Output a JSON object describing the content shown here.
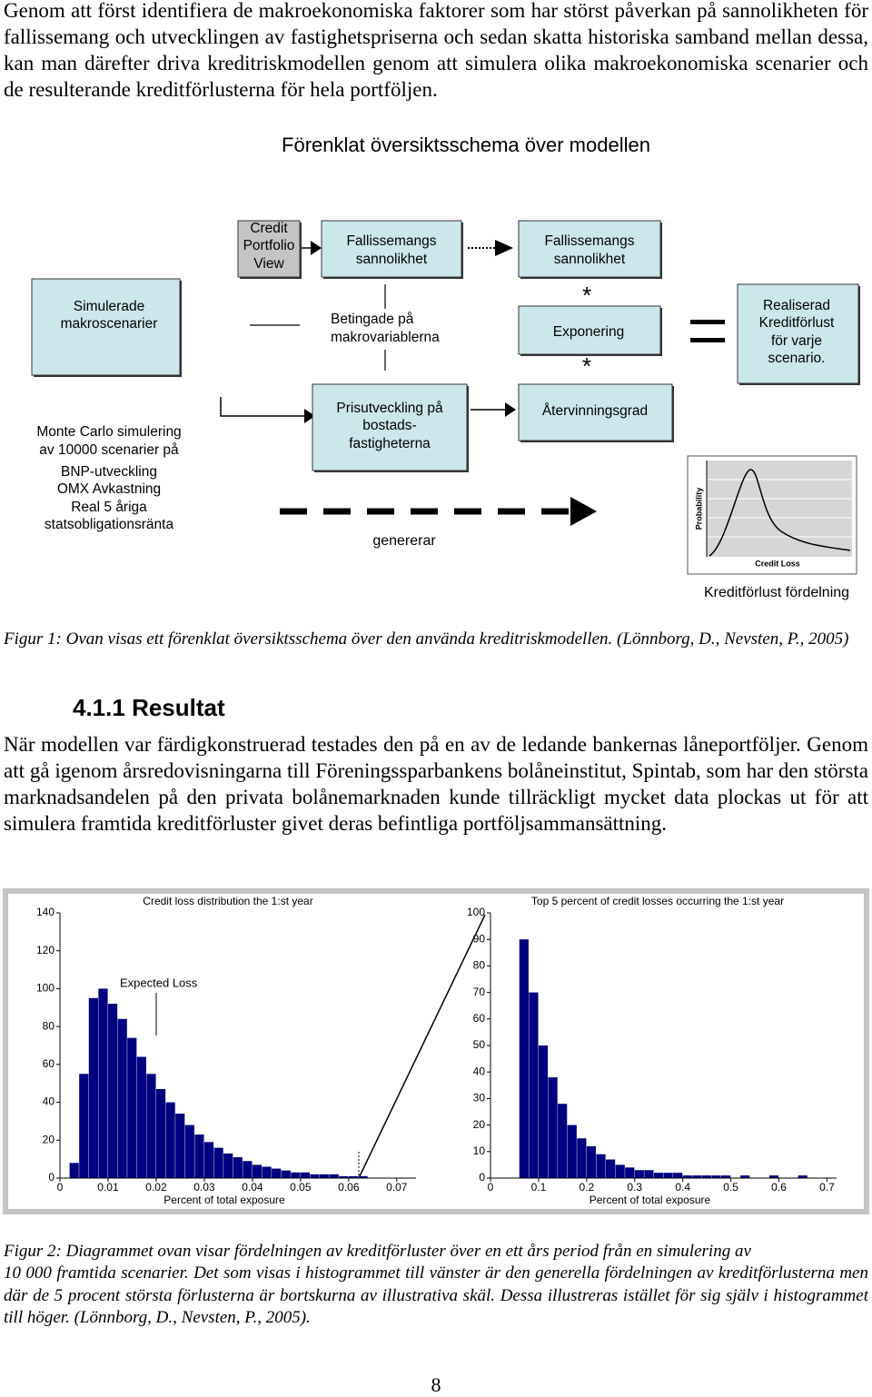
{
  "paragraphs": [
    "Genom att först identifiera de makroekonomiska faktorer som har störst påverkan på sannolikheten för fallissemang och utvecklingen av fastighetspriserna och sedan skatta historiska samband mellan dessa, kan man därefter driva kreditriskmodellen genom att simulera olika makroekonomiska scenarier och de resulterande kreditförlusterna för hela portföljen.",
    "När modellen var färdigkonstruerad testades den på en av de ledande bankernas låneportföljer. Genom att gå igenom årsredovisningarna till Föreningssparbankens bolåneinstitut, Spintab, som har den största marknadsandelen på den privata bolånemarknaden kunde tillräckligt mycket data plockas ut för att simulera framtida kreditförluster givet deras befintliga portföljsammansättning."
  ],
  "diagram": {
    "title": "Förenklat översiktsschema över modellen",
    "nodes": [
      {
        "lines": [
          "Credit",
          "Portfolio",
          "View"
        ]
      },
      {
        "lines": [
          "Fallissemangs",
          "sannolikhet"
        ]
      },
      {
        "lines": [
          "Fallissemangs",
          "sannolikhet"
        ]
      },
      {
        "lines": [
          "Simulerade",
          "makroscenarier"
        ]
      },
      {
        "lines": [
          "Betingade på",
          "makrovariablerna"
        ]
      },
      {
        "lines": [
          "Exponering"
        ]
      },
      {
        "lines": [
          "Realiserad",
          "Kreditförlust",
          "för varje",
          "scenario."
        ]
      },
      {
        "lines": [
          "Monte Carlo simulering",
          "av 10000 scenarier på",
          "BNP-utveckling",
          "OMX Avkastning",
          "Real 5 åriga",
          "statsobligationsränta"
        ]
      },
      {
        "lines": [
          "Prisutveckling på",
          "bostads-",
          "fastigheterna"
        ]
      },
      {
        "lines": [
          "Återvinningsgrad"
        ]
      }
    ],
    "operators": [
      "*",
      "*"
    ],
    "edge_label": "genererar",
    "mini_chart": {
      "ylabel": "Probability",
      "xlabel": "Credit Loss",
      "caption": "Kreditförlust fördelning"
    }
  },
  "figure1_caption": "Figur 1: Ovan visas ett förenklat översiktsschema över den använda kreditriskmodellen. (Lönnborg, D., Nevsten, P., 2005)",
  "section": {
    "number": "4.1.1",
    "title": "Resultat"
  },
  "charts": [
    {
      "type": "histogram",
      "title": "Credit loss distribution the 1:st year",
      "xlabel": "Percent of total exposure",
      "annotation": "Expected Loss",
      "color": "#000080",
      "bins": [
        0,
        0.002,
        0.004,
        0.006,
        0.008,
        0.01,
        0.012,
        0.014,
        0.016,
        0.018,
        0.02,
        0.022,
        0.024,
        0.026,
        0.028,
        0.03,
        0.032,
        0.034,
        0.036,
        0.038,
        0.04,
        0.042,
        0.044,
        0.046,
        0.048,
        0.05,
        0.052,
        0.054,
        0.056,
        0.058,
        0.06,
        0.062,
        0.064
      ],
      "counts": [
        0,
        8,
        55,
        95,
        100,
        92,
        84,
        74,
        64,
        55,
        47,
        40,
        34,
        28,
        23,
        19,
        16,
        13,
        11,
        9,
        7,
        6,
        5,
        4,
        3,
        3,
        2,
        2,
        2,
        1,
        1,
        1
      ],
      "xlim": [
        0,
        0.074
      ],
      "ylim": [
        0,
        140
      ],
      "xticks": [
        0,
        0.01,
        0.02,
        0.03,
        0.04,
        0.05,
        0.06,
        0.07
      ],
      "yticks": [
        0,
        20,
        40,
        60,
        80,
        100,
        120,
        140
      ]
    },
    {
      "type": "histogram",
      "title": "Top 5 percent of credit losses occurring the 1:st year",
      "xlabel": "Percent of total exposure",
      "color": "#000080",
      "bins": [
        0.06,
        0.08,
        0.1,
        0.12,
        0.14,
        0.16,
        0.18,
        0.2,
        0.22,
        0.24,
        0.26,
        0.28,
        0.3,
        0.32,
        0.34,
        0.36,
        0.38,
        0.4,
        0.42,
        0.44,
        0.46,
        0.48,
        0.5,
        0.52,
        0.54,
        0.56,
        0.58,
        0.6,
        0.62,
        0.64,
        0.66
      ],
      "counts": [
        90,
        70,
        50,
        38,
        28,
        20,
        15,
        12,
        9,
        7,
        5,
        4,
        3,
        3,
        2,
        2,
        2,
        1,
        1,
        1,
        1,
        1,
        0,
        1,
        0,
        0,
        1,
        0,
        0,
        1
      ],
      "xlim": [
        0,
        0.72
      ],
      "ylim": [
        0,
        100
      ],
      "xticks": [
        0,
        0.1,
        0.2,
        0.3,
        0.4,
        0.5,
        0.6,
        0.7
      ],
      "yticks": [
        0,
        10,
        20,
        30,
        40,
        50,
        60,
        70,
        80,
        90,
        100
      ]
    }
  ],
  "figure2_caption": [
    "Figur 2: Diagrammet ovan visar fördelningen av kreditförluster över en ett års period från en simulering av",
    "10 000 framtida scenarier. Det som visas i histogrammet till vänster är den generella fördelningen av kreditförlusterna men där de 5 procent största förlusterna är bortskurna av illustrativa skäl. Dessa illustreras istället för sig själv i histogrammet till höger. (Lönnborg, D., Nevsten, P., 2005)."
  ],
  "page_number": "8"
}
